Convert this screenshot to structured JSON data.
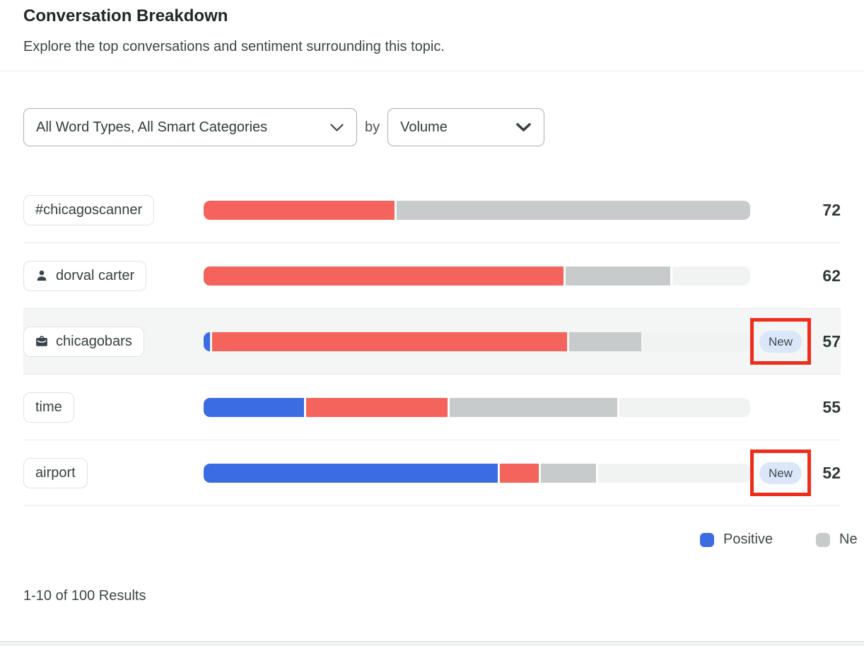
{
  "header": {
    "title": "Conversation Breakdown",
    "subtitle": "Explore the top conversations and sentiment surrounding this topic."
  },
  "filters": {
    "word_types_value": "All Word Types, All Smart Categories",
    "connector": "by",
    "sort_value": "Volume"
  },
  "colors": {
    "positive": "#3b6ce1",
    "negative": "#f4635c",
    "neutral": "#c8cbcb",
    "rest": "#f1f3f3",
    "badge_bg": "#dce6f9",
    "annotation_red": "#ee2d1c",
    "row_highlight": "#f4f5f5"
  },
  "badge_label": "New",
  "rows": [
    {
      "label": "#chicagoscanner",
      "icon": "none",
      "value": "72",
      "highlighted": false,
      "new_badge": false,
      "segments": [
        {
          "type": "negative",
          "pct": 35.1
        },
        {
          "type": "neutral",
          "pct": 64.9
        }
      ]
    },
    {
      "label": "dorval carter",
      "icon": "person",
      "value": "62",
      "highlighted": false,
      "new_badge": false,
      "segments": [
        {
          "type": "negative",
          "pct": 66.3
        },
        {
          "type": "neutral",
          "pct": 19.3
        },
        {
          "type": "rest",
          "pct": 14.4
        }
      ]
    },
    {
      "label": "chicagobars",
      "icon": "briefcase",
      "value": "57",
      "highlighted": true,
      "new_badge": true,
      "segments": [
        {
          "type": "positive",
          "pct": 1.2
        },
        {
          "type": "negative",
          "pct": 65.2
        },
        {
          "type": "neutral",
          "pct": 13.2
        },
        {
          "type": "rest",
          "pct": 19.6
        }
      ]
    },
    {
      "label": "time",
      "icon": "none",
      "value": "55",
      "highlighted": false,
      "new_badge": false,
      "segments": [
        {
          "type": "positive",
          "pct": 18.6
        },
        {
          "type": "negative",
          "pct": 26.2
        },
        {
          "type": "neutral",
          "pct": 31.0
        },
        {
          "type": "rest",
          "pct": 24.2
        }
      ]
    },
    {
      "label": "airport",
      "icon": "none",
      "value": "52",
      "highlighted": false,
      "new_badge": true,
      "segments": [
        {
          "type": "positive",
          "pct": 54.5
        },
        {
          "type": "negative",
          "pct": 7.2
        },
        {
          "type": "neutral",
          "pct": 10.2
        },
        {
          "type": "rest",
          "pct": 28.1
        }
      ]
    }
  ],
  "legend": [
    {
      "label": "Positive",
      "color": "#3b6ce1"
    },
    {
      "label": "Ne",
      "color": "#c8cbcb"
    }
  ],
  "pagination": {
    "text": "1-10 of 100 Results"
  }
}
